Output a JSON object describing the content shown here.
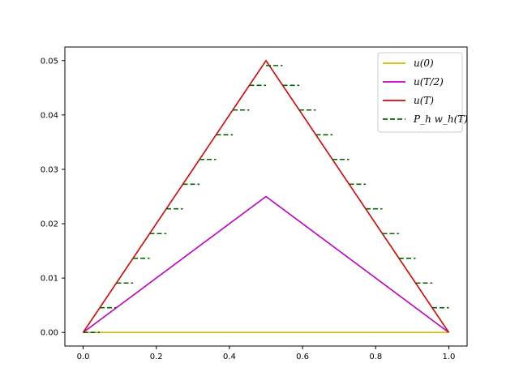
{
  "chart_data": {
    "type": "line",
    "xlim": [
      -0.05,
      1.05
    ],
    "ylim": [
      -0.0025,
      0.0525
    ],
    "xticks": [
      0.0,
      0.2,
      0.4,
      0.6,
      0.8,
      1.0
    ],
    "xtick_labels": [
      "0.0",
      "0.2",
      "0.4",
      "0.6",
      "0.8",
      "1.0"
    ],
    "yticks": [
      0.0,
      0.01,
      0.02,
      0.03,
      0.04,
      0.05
    ],
    "ytick_labels": [
      "0.00",
      "0.01",
      "0.02",
      "0.03",
      "0.04",
      "0.05"
    ],
    "grid": false,
    "legend_position": "top-right",
    "series": [
      {
        "name": "u(0)",
        "color": "#cfbf00",
        "style": "solid",
        "x": [
          0.0,
          1.0
        ],
        "y": [
          0.0,
          0.0
        ]
      },
      {
        "name": "u(T/2)",
        "color": "#c000c0",
        "style": "solid",
        "x": [
          0.0,
          0.5,
          1.0
        ],
        "y": [
          0.0,
          0.025,
          0.0
        ]
      },
      {
        "name": "u(T)",
        "color": "#e00000",
        "style": "solid",
        "x": [
          0.0,
          0.5,
          1.0
        ],
        "y": [
          0.0,
          0.05,
          0.0
        ]
      },
      {
        "name": "P_h w_h(T)",
        "color": "#006400",
        "style": "dashed-steps",
        "x_left": [
          0.0,
          0.04545,
          0.09091,
          0.13636,
          0.18182,
          0.22727,
          0.27273,
          0.31818,
          0.36364,
          0.40909,
          0.45455,
          0.5,
          0.54545,
          0.59091,
          0.63636,
          0.68182,
          0.72727,
          0.77273,
          0.81818,
          0.86364,
          0.90909,
          0.95455
        ],
        "y": [
          0.0,
          0.00455,
          0.00909,
          0.01364,
          0.01818,
          0.02273,
          0.02727,
          0.03182,
          0.03636,
          0.04091,
          0.04545,
          0.04909,
          0.04545,
          0.04091,
          0.03636,
          0.03182,
          0.02727,
          0.02273,
          0.01818,
          0.01364,
          0.00909,
          0.00455
        ],
        "step_width": 0.04545
      }
    ]
  }
}
